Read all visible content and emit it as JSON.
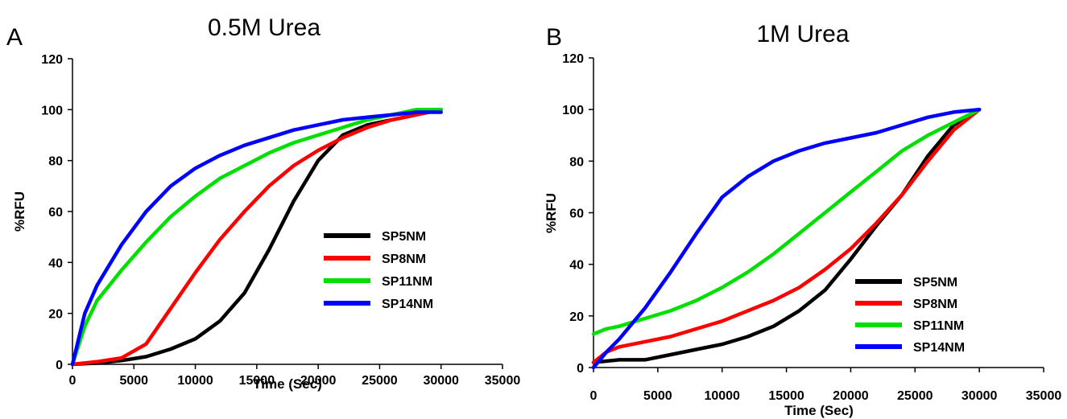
{
  "chart_data": [
    {
      "type": "line",
      "panel_letter": "A",
      "title": "0.5M Urea",
      "xlabel": "Time (Sec)",
      "ylabel": "%RFU",
      "xlim": [
        0,
        35000
      ],
      "ylim": [
        0,
        120
      ],
      "xticks": [
        0,
        5000,
        10000,
        15000,
        20000,
        25000,
        30000,
        35000
      ],
      "yticks": [
        0,
        20,
        40,
        60,
        80,
        100,
        120
      ],
      "grid": false,
      "legend_position": "center-right",
      "series": [
        {
          "name": "SP5NM",
          "color": "#000000",
          "x": [
            0,
            2000,
            4000,
            6000,
            8000,
            10000,
            12000,
            14000,
            16000,
            18000,
            20000,
            22000,
            24000,
            26000,
            28000,
            30000
          ],
          "y": [
            0,
            0.5,
            1.5,
            3,
            6,
            10,
            17,
            28,
            45,
            64,
            80,
            90,
            94,
            96,
            98,
            100
          ]
        },
        {
          "name": "SP8NM",
          "color": "#ff0000",
          "x": [
            0,
            2000,
            4000,
            6000,
            8000,
            10000,
            12000,
            14000,
            16000,
            18000,
            20000,
            22000,
            24000,
            26000,
            28000,
            30000
          ],
          "y": [
            0,
            1,
            2.5,
            8,
            22,
            36,
            49,
            60,
            70,
            78,
            84,
            89,
            93,
            96,
            98,
            100
          ]
        },
        {
          "name": "SP11NM",
          "color": "#00e000",
          "x": [
            0,
            1000,
            2000,
            4000,
            6000,
            8000,
            10000,
            12000,
            14000,
            16000,
            18000,
            20000,
            22000,
            24000,
            26000,
            28000,
            30000
          ],
          "y": [
            0,
            15,
            25,
            37,
            48,
            58,
            66,
            73,
            78,
            83,
            87,
            90,
            93,
            96,
            98,
            100,
            100
          ]
        },
        {
          "name": "SP14NM",
          "color": "#0000ff",
          "x": [
            0,
            1000,
            2000,
            4000,
            6000,
            8000,
            10000,
            12000,
            14000,
            16000,
            18000,
            20000,
            22000,
            24000,
            26000,
            28000,
            30000
          ],
          "y": [
            0,
            20,
            31,
            47,
            60,
            70,
            77,
            82,
            86,
            89,
            92,
            94,
            96,
            97,
            98,
            99,
            99
          ]
        }
      ]
    },
    {
      "type": "line",
      "panel_letter": "B",
      "title": "1M Urea",
      "xlabel": "Time (Sec)",
      "ylabel": "%RFU",
      "xlim": [
        0,
        35000
      ],
      "ylim": [
        0,
        120
      ],
      "xticks": [
        0,
        5000,
        10000,
        15000,
        20000,
        25000,
        30000,
        35000
      ],
      "yticks": [
        0,
        20,
        40,
        60,
        80,
        100,
        120
      ],
      "grid": false,
      "legend_position": "bottom-right",
      "series": [
        {
          "name": "SP5NM",
          "color": "#000000",
          "x": [
            0,
            2000,
            4000,
            6000,
            8000,
            10000,
            12000,
            14000,
            16000,
            18000,
            20000,
            22000,
            24000,
            26000,
            28000,
            30000
          ],
          "y": [
            2,
            3,
            3,
            5,
            7,
            9,
            12,
            16,
            22,
            30,
            42,
            55,
            67,
            82,
            94,
            100
          ]
        },
        {
          "name": "SP8NM",
          "color": "#ff0000",
          "x": [
            0,
            1000,
            2000,
            4000,
            6000,
            8000,
            10000,
            12000,
            14000,
            16000,
            18000,
            20000,
            22000,
            24000,
            26000,
            28000,
            30000
          ],
          "y": [
            2,
            6,
            8,
            10,
            12,
            15,
            18,
            22,
            26,
            31,
            38,
            46,
            56,
            67,
            80,
            92,
            100
          ]
        },
        {
          "name": "SP11NM",
          "color": "#00e000",
          "x": [
            0,
            1000,
            2000,
            4000,
            6000,
            8000,
            10000,
            12000,
            14000,
            16000,
            18000,
            20000,
            22000,
            24000,
            26000,
            28000,
            30000
          ],
          "y": [
            13,
            15,
            16,
            19,
            22,
            26,
            31,
            37,
            44,
            52,
            60,
            68,
            76,
            84,
            90,
            95,
            100
          ]
        },
        {
          "name": "SP14NM",
          "color": "#0000ff",
          "x": [
            0,
            1000,
            2000,
            4000,
            6000,
            8000,
            10000,
            12000,
            14000,
            16000,
            18000,
            20000,
            22000,
            24000,
            26000,
            28000,
            30000
          ],
          "y": [
            0,
            6,
            11,
            23,
            37,
            52,
            66,
            74,
            80,
            84,
            87,
            89,
            91,
            94,
            97,
            99,
            100
          ]
        }
      ]
    }
  ]
}
